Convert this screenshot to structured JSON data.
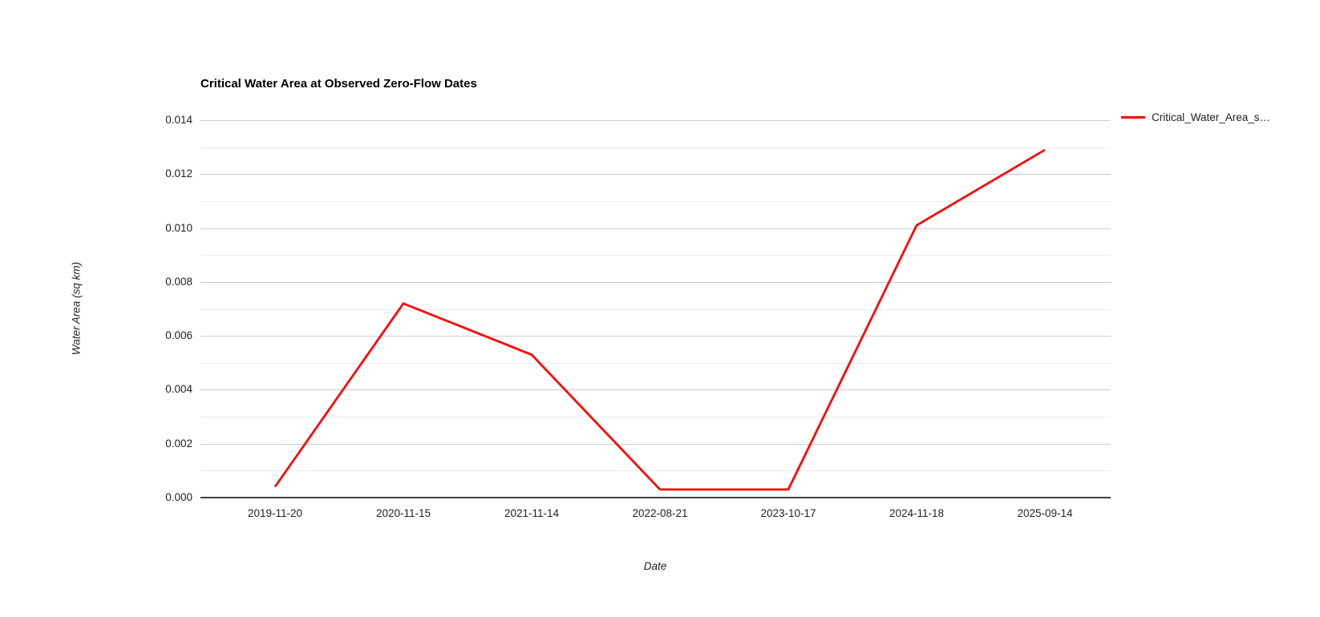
{
  "chart_data": {
    "type": "line",
    "title": "Critical Water Area at Observed Zero-Flow Dates",
    "xlabel": "Date",
    "ylabel": "Water Area (sq km)",
    "categories": [
      "2019-11-20",
      "2020-11-15",
      "2021-11-14",
      "2022-08-21",
      "2023-10-17",
      "2024-11-18",
      "2025-09-14"
    ],
    "series": [
      {
        "name": "Critical_Water_Area_s…",
        "color": "#ff0000",
        "values": [
          0.0004,
          0.0072,
          0.0053,
          0.0003,
          0.0003,
          0.0101,
          0.0129
        ]
      }
    ],
    "ylim": [
      0,
      0.014
    ],
    "y_gridline_step": 0.001,
    "y_label_step": 0.002,
    "y_tick_labels": [
      "0.000",
      "0.002",
      "0.004",
      "0.006",
      "0.008",
      "0.010",
      "0.012",
      "0.014"
    ],
    "y_tick_decimals": 3,
    "grid": true,
    "legend_position": "right"
  },
  "colors": {
    "major_gridline": "#cccccc",
    "minor_gridline": "#ebebeb",
    "axis_line": "#424242",
    "tick_label": "#222222",
    "background": "#ffffff"
  }
}
